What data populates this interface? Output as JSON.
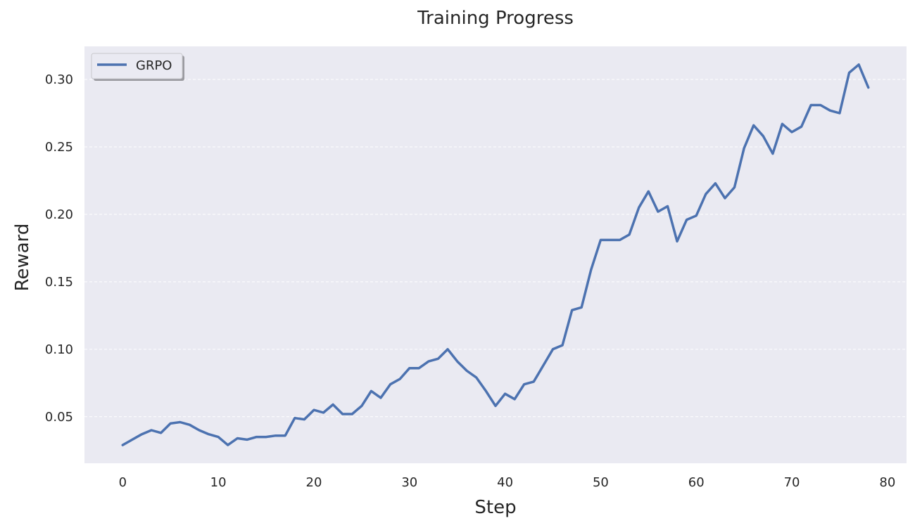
{
  "chart_data": {
    "type": "line",
    "title": "Training Progress",
    "xlabel": "Step",
    "ylabel": "Reward",
    "xlim": [
      -4,
      82
    ],
    "ylim": [
      0.0155,
      0.3245
    ],
    "xticks": [
      0,
      10,
      20,
      30,
      40,
      50,
      60,
      70,
      80
    ],
    "xtick_labels": [
      "0",
      "10",
      "20",
      "30",
      "40",
      "50",
      "60",
      "70",
      "80"
    ],
    "yticks": [
      0.05,
      0.1,
      0.15,
      0.2,
      0.25,
      0.3
    ],
    "ytick_labels": [
      "0.05",
      "0.10",
      "0.15",
      "0.20",
      "0.25",
      "0.30"
    ],
    "grid": true,
    "legend_position": "top-left",
    "background_color": "#eaeaf2",
    "series": [
      {
        "name": "GRPO",
        "color": "#4c72b0",
        "x": [
          0,
          1,
          2,
          3,
          4,
          5,
          6,
          7,
          8,
          9,
          10,
          11,
          12,
          13,
          14,
          15,
          16,
          17,
          18,
          19,
          20,
          21,
          22,
          23,
          24,
          25,
          26,
          27,
          28,
          29,
          30,
          31,
          32,
          33,
          34,
          35,
          36,
          37,
          38,
          39,
          40,
          41,
          42,
          43,
          44,
          45,
          46,
          47,
          48,
          49,
          50,
          51,
          52,
          53,
          54,
          55,
          56,
          57,
          58,
          59,
          60,
          61,
          62,
          63,
          64,
          65,
          66,
          67,
          68,
          69,
          70,
          71,
          72,
          73,
          74,
          75,
          76,
          77,
          78
        ],
        "y": [
          0.029,
          0.033,
          0.037,
          0.04,
          0.038,
          0.045,
          0.046,
          0.044,
          0.04,
          0.037,
          0.035,
          0.029,
          0.034,
          0.033,
          0.035,
          0.035,
          0.036,
          0.036,
          0.049,
          0.048,
          0.055,
          0.053,
          0.059,
          0.052,
          0.052,
          0.058,
          0.069,
          0.064,
          0.074,
          0.078,
          0.086,
          0.086,
          0.091,
          0.093,
          0.1,
          0.091,
          0.084,
          0.079,
          0.069,
          0.058,
          0.067,
          0.063,
          0.074,
          0.076,
          0.088,
          0.1,
          0.103,
          0.129,
          0.131,
          0.159,
          0.181,
          0.181,
          0.181,
          0.185,
          0.205,
          0.217,
          0.202,
          0.206,
          0.18,
          0.196,
          0.199,
          0.215,
          0.223,
          0.212,
          0.22,
          0.249,
          0.266,
          0.258,
          0.245,
          0.267,
          0.261,
          0.265,
          0.281,
          0.281,
          0.277,
          0.275,
          0.305,
          0.311,
          0.294
        ]
      }
    ]
  }
}
